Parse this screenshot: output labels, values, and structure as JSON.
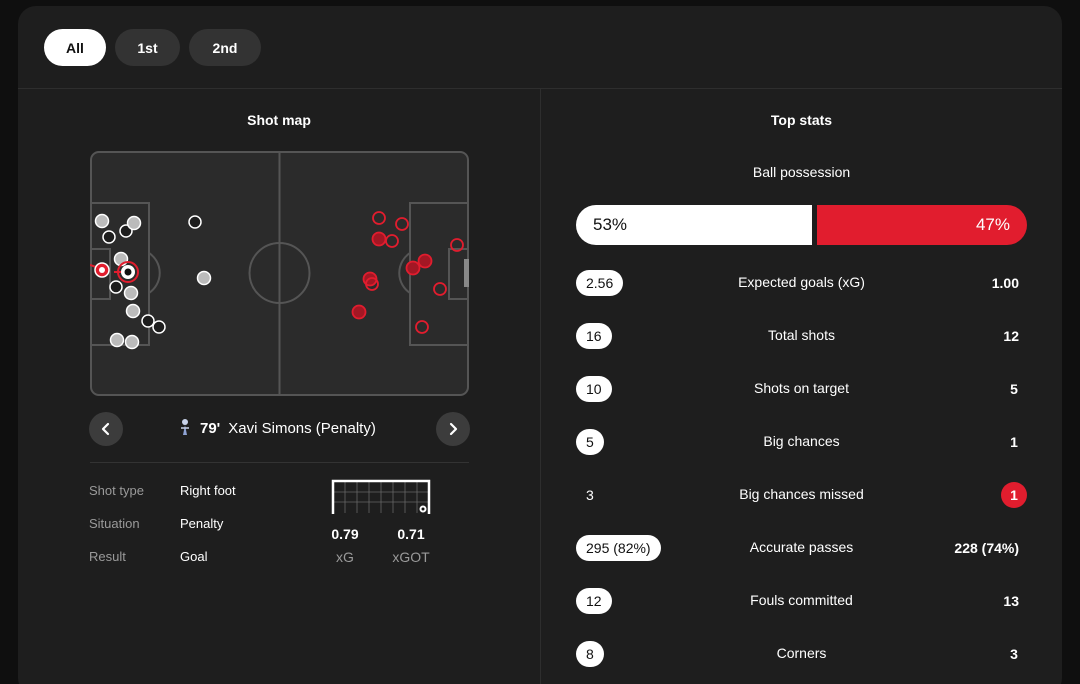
{
  "tabs": [
    {
      "label": "All",
      "active": true
    },
    {
      "label": "1st",
      "active": false
    },
    {
      "label": "2nd",
      "active": false
    }
  ],
  "shot_map": {
    "title": "Shot map",
    "selected_shot": {
      "minute": "79'",
      "player": "Xavi Simons (Penalty)"
    },
    "details": [
      {
        "label": "Shot type",
        "value": "Right foot"
      },
      {
        "label": "Situation",
        "value": "Penalty"
      },
      {
        "label": "Result",
        "value": "Goal"
      }
    ],
    "xg": {
      "value": "0.79",
      "label": "xG"
    },
    "xgot": {
      "value": "0.71",
      "label": "xGOT"
    }
  },
  "top_stats": {
    "title": "Top stats",
    "possession": {
      "label": "Ball possession",
      "home": "53%",
      "away": "47%"
    },
    "rows": [
      {
        "name": "Expected goals (xG)",
        "home": "2.56",
        "away": "1.00",
        "home_style": "pill",
        "away_style": "plain"
      },
      {
        "name": "Total shots",
        "home": "16",
        "away": "12",
        "home_style": "pill",
        "away_style": "plain"
      },
      {
        "name": "Shots on target",
        "home": "10",
        "away": "5",
        "home_style": "pill",
        "away_style": "plain"
      },
      {
        "name": "Big chances",
        "home": "5",
        "away": "1",
        "home_style": "pill",
        "away_style": "plain"
      },
      {
        "name": "Big chances missed",
        "home": "3",
        "away": "1",
        "home_style": "plain",
        "away_style": "red"
      },
      {
        "name": "Accurate passes",
        "home": "295 (82%)",
        "away": "228 (74%)",
        "home_style": "pill",
        "away_style": "plain"
      },
      {
        "name": "Fouls committed",
        "home": "12",
        "away": "13",
        "home_style": "pill",
        "away_style": "plain"
      },
      {
        "name": "Corners",
        "home": "8",
        "away": "3",
        "home_style": "pill",
        "away_style": "plain"
      }
    ]
  },
  "colors": {
    "home": "#ffffff",
    "away": "#e11d2e",
    "panel": "#1e1e1e"
  },
  "icons": {
    "prev": "chevron-left-icon",
    "next": "chevron-right-icon",
    "team": "team-crest-icon",
    "ball": "football-icon"
  }
}
